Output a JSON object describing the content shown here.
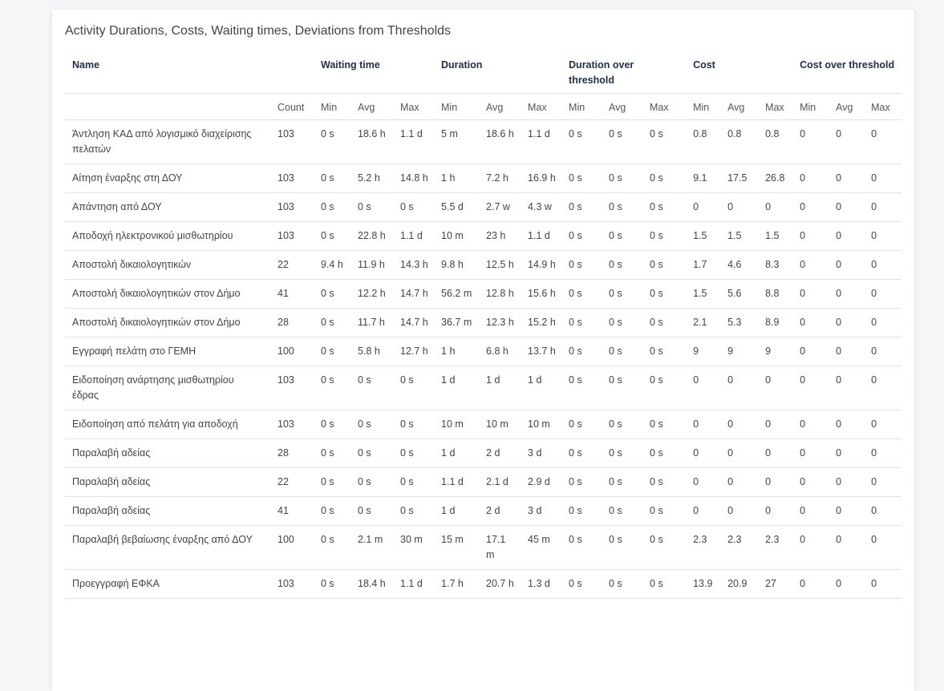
{
  "title": "Activity Durations, Costs, Waiting times, Deviations from Thresholds",
  "group_headers": [
    "Name",
    "Waiting time",
    "Duration",
    "Duration over threshold",
    "Cost",
    "Cost over threshold"
  ],
  "sub_headers": [
    "Count",
    "Min",
    "Avg",
    "Max",
    "Min",
    "Avg",
    "Max",
    "Min",
    "Avg",
    "Max",
    "Min",
    "Avg",
    "Max",
    "Min",
    "Avg",
    "Max"
  ],
  "rows": [
    [
      "Άντληση ΚΑΔ από λογισμικό διαχείρισης πελατών",
      "103",
      "0 s",
      "18.6 h",
      "1.1 d",
      "5 m",
      "18.6 h",
      "1.1 d",
      "0 s",
      "0 s",
      "0 s",
      "0.8",
      "0.8",
      "0.8",
      "0",
      "0",
      "0"
    ],
    [
      "Αίτηση έναρξης στη ΔΟΥ",
      "103",
      "0 s",
      "5.2 h",
      "14.8 h",
      "1 h",
      "7.2 h",
      "16.9 h",
      "0 s",
      "0 s",
      "0 s",
      "9.1",
      "17.5",
      "26.8",
      "0",
      "0",
      "0"
    ],
    [
      "Απάντηση από ΔΟΥ",
      "103",
      "0 s",
      "0 s",
      "0 s",
      "5.5 d",
      "2.7 w",
      "4.3 w",
      "0 s",
      "0 s",
      "0 s",
      "0",
      "0",
      "0",
      "0",
      "0",
      "0"
    ],
    [
      "Αποδοχή ηλεκτρονικού μισθωτηρίου",
      "103",
      "0 s",
      "22.8 h",
      "1.1 d",
      "10 m",
      "23 h",
      "1.1 d",
      "0 s",
      "0 s",
      "0 s",
      "1.5",
      "1.5",
      "1.5",
      "0",
      "0",
      "0"
    ],
    [
      "Αποστολή δικαιολογητικών",
      "22",
      "9.4 h",
      "11.9 h",
      "14.3 h",
      "9.8 h",
      "12.5 h",
      "14.9 h",
      "0 s",
      "0 s",
      "0 s",
      "1.7",
      "4.6",
      "8.3",
      "0",
      "0",
      "0"
    ],
    [
      "Αποστολή δικαιολογητικών στον Δήμο",
      "41",
      "0 s",
      "12.2 h",
      "14.7 h",
      "56.2 m",
      "12.8 h",
      "15.6 h",
      "0 s",
      "0 s",
      "0 s",
      "1.5",
      "5.6",
      "8.8",
      "0",
      "0",
      "0"
    ],
    [
      "Αποστολή δικαιολογητικών στον Δήμο",
      "28",
      "0 s",
      "11.7 h",
      "14.7 h",
      "36.7 m",
      "12.3 h",
      "15.2 h",
      "0 s",
      "0 s",
      "0 s",
      "2.1",
      "5.3",
      "8.9",
      "0",
      "0",
      "0"
    ],
    [
      "Εγγραφή πελάτη στο ΓΕΜΗ",
      "100",
      "0 s",
      "5.8 h",
      "12.7 h",
      "1 h",
      "6.8 h",
      "13.7 h",
      "0 s",
      "0 s",
      "0 s",
      "9",
      "9",
      "9",
      "0",
      "0",
      "0"
    ],
    [
      "Ειδοποίηση ανάρτησης μισθωτηρίου έδρας",
      "103",
      "0 s",
      "0 s",
      "0 s",
      "1 d",
      "1 d",
      "1 d",
      "0 s",
      "0 s",
      "0 s",
      "0",
      "0",
      "0",
      "0",
      "0",
      "0"
    ],
    [
      "Ειδοποίηση από πελάτη για αποδοχή",
      "103",
      "0 s",
      "0 s",
      "0 s",
      "10 m",
      "10 m",
      "10 m",
      "0 s",
      "0 s",
      "0 s",
      "0",
      "0",
      "0",
      "0",
      "0",
      "0"
    ],
    [
      "Παραλαβή αδείας",
      "28",
      "0 s",
      "0 s",
      "0 s",
      "1 d",
      "2 d",
      "3 d",
      "0 s",
      "0 s",
      "0 s",
      "0",
      "0",
      "0",
      "0",
      "0",
      "0"
    ],
    [
      "Παραλαβή αδείας",
      "22",
      "0 s",
      "0 s",
      "0 s",
      "1.1 d",
      "2.1 d",
      "2.9 d",
      "0 s",
      "0 s",
      "0 s",
      "0",
      "0",
      "0",
      "0",
      "0",
      "0"
    ],
    [
      "Παραλαβή αδείας",
      "41",
      "0 s",
      "0 s",
      "0 s",
      "1 d",
      "2 d",
      "3 d",
      "0 s",
      "0 s",
      "0 s",
      "0",
      "0",
      "0",
      "0",
      "0",
      "0"
    ],
    [
      "Παραλαβή βεβαίωσης έναρξης από ΔΟΥ",
      "100",
      "0 s",
      "2.1 m",
      "30 m",
      "15 m",
      "17.1 m",
      "45 m",
      "0 s",
      "0 s",
      "0 s",
      "2.3",
      "2.3",
      "2.3",
      "0",
      "0",
      "0"
    ],
    [
      "Προεγγραφή ΕΦΚΑ",
      "103",
      "0 s",
      "18.4 h",
      "1.1 d",
      "1.7 h",
      "20.7 h",
      "1.3 d",
      "0 s",
      "0 s",
      "0 s",
      "13.9",
      "20.9",
      "27",
      "0",
      "0",
      "0"
    ]
  ]
}
